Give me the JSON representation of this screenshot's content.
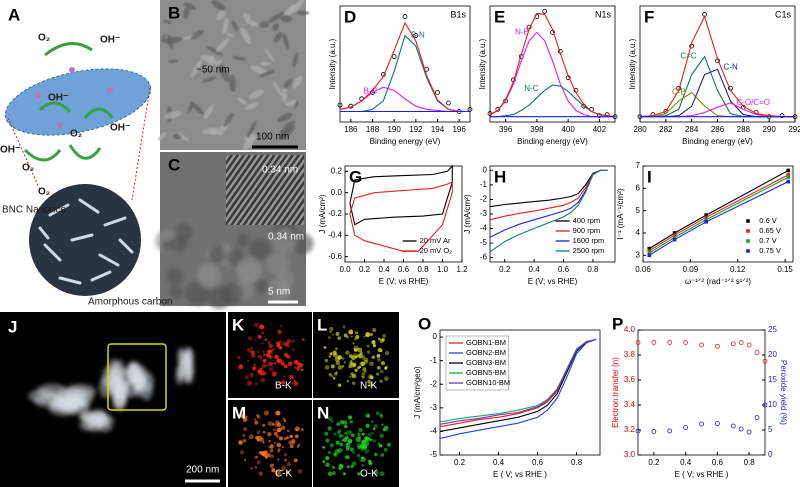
{
  "chart_data": [
    {
      "panel": "D",
      "type": "line",
      "title": "B1s",
      "x_label": "Binding energy (eV)",
      "y_label": "Intensity (a.u.)",
      "x": [
        185,
        186,
        187,
        188,
        189,
        190,
        191,
        192,
        193,
        194,
        195,
        196,
        197
      ],
      "xlim": [
        185,
        197
      ],
      "xticks": [
        186,
        188,
        190,
        192,
        194,
        196
      ],
      "ylim": [
        0,
        1.1
      ],
      "series": [
        {
          "color": "#000000",
          "mode": "markers",
          "values": [
            0.16,
            0.15,
            0.22,
            0.28,
            0.45,
            0.62,
            1.0,
            0.82,
            0.5,
            0.28,
            0.18,
            0.1,
            0.12
          ]
        },
        {
          "name": "B-C",
          "color": "#e020e0",
          "values": [
            0.12,
            0.14,
            0.2,
            0.28,
            0.33,
            0.3,
            0.22,
            0.15,
            0.12,
            0.11,
            0.1,
            0.1,
            0.1
          ]
        },
        {
          "name": "B-N",
          "color": "#107070",
          "values": [
            0.1,
            0.1,
            0.1,
            0.12,
            0.2,
            0.48,
            0.82,
            0.72,
            0.42,
            0.2,
            0.12,
            0.1,
            0.1
          ]
        },
        {
          "color": "#e02020",
          "values": [
            0.12,
            0.14,
            0.2,
            0.3,
            0.43,
            0.68,
            0.94,
            0.77,
            0.44,
            0.21,
            0.12,
            0.1,
            0.1
          ]
        },
        {
          "color": "#2020e0",
          "values": [
            0.1,
            0.1,
            0.1,
            0.1,
            0.1,
            0.1,
            0.1,
            0.1,
            0.1,
            0.1,
            0.1,
            0.1,
            0.1
          ]
        }
      ]
    },
    {
      "panel": "E",
      "type": "line",
      "title": "N1s",
      "x_label": "Binding energy (eV)",
      "y_label": "Intensity (a.u.)",
      "x": [
        395,
        395.5,
        396,
        396.5,
        397,
        397.5,
        398,
        398.5,
        399,
        399.5,
        400,
        400.5,
        401,
        401.5,
        402,
        402.5,
        403
      ],
      "xlim": [
        395,
        403
      ],
      "xticks": [
        396,
        398,
        400,
        402
      ],
      "ylim": [
        0,
        1.1
      ],
      "series": [
        {
          "color": "#000000",
          "mode": "markers",
          "values": [
            0.08,
            0.12,
            0.2,
            0.4,
            0.62,
            0.9,
            1.0,
            1.05,
            0.85,
            0.67,
            0.42,
            0.3,
            0.15,
            0.12,
            0.06,
            0.07,
            0.05
          ]
        },
        {
          "name": "N-B",
          "color": "#e020e0",
          "values": [
            0.07,
            0.11,
            0.2,
            0.36,
            0.58,
            0.77,
            0.85,
            0.77,
            0.58,
            0.36,
            0.2,
            0.11,
            0.07,
            0.05,
            0.05,
            0.05,
            0.05
          ]
        },
        {
          "name": "N-C",
          "color": "#107070",
          "values": [
            0.05,
            0.05,
            0.06,
            0.07,
            0.11,
            0.16,
            0.23,
            0.3,
            0.35,
            0.34,
            0.29,
            0.22,
            0.15,
            0.1,
            0.07,
            0.06,
            0.05
          ]
        },
        {
          "color": "#e02020",
          "values": [
            0.07,
            0.11,
            0.21,
            0.38,
            0.64,
            0.88,
            1.03,
            1.02,
            0.88,
            0.65,
            0.44,
            0.28,
            0.17,
            0.1,
            0.07,
            0.06,
            0.05
          ]
        },
        {
          "color": "#2020e0",
          "values": [
            0.05,
            0.05,
            0.05,
            0.05,
            0.05,
            0.05,
            0.05,
            0.05,
            0.05,
            0.05,
            0.05,
            0.05,
            0.05,
            0.05,
            0.05,
            0.05,
            0.05
          ]
        }
      ]
    },
    {
      "panel": "F",
      "type": "line",
      "title": "C1s",
      "x_label": "Binding energy (eV)",
      "y_label": "Intensity (a.u.)",
      "x": [
        280,
        281,
        282,
        283,
        284,
        285,
        286,
        287,
        288,
        289,
        290,
        291,
        292
      ],
      "xlim": [
        280,
        292
      ],
      "xticks": [
        280,
        282,
        284,
        286,
        288,
        290,
        292
      ],
      "ylim": [
        0,
        1.1
      ],
      "series": [
        {
          "color": "#000000",
          "mode": "markers",
          "values": [
            0.05,
            0.07,
            0.1,
            0.32,
            0.72,
            1.02,
            0.58,
            0.32,
            0.14,
            0.09,
            0.05,
            0.06,
            0.05
          ]
        },
        {
          "name": "C=C",
          "color": "#007a5a",
          "values": [
            0.05,
            0.05,
            0.06,
            0.12,
            0.45,
            0.62,
            0.3,
            0.08,
            0.05,
            0.05,
            0.05,
            0.05,
            0.05
          ]
        },
        {
          "name": "C-B",
          "color": "#8a8a00",
          "values": [
            0.05,
            0.05,
            0.08,
            0.2,
            0.28,
            0.15,
            0.06,
            0.05,
            0.05,
            0.05,
            0.05,
            0.05,
            0.05
          ]
        },
        {
          "name": "C-N",
          "color": "#202080",
          "values": [
            0.05,
            0.05,
            0.05,
            0.06,
            0.15,
            0.45,
            0.5,
            0.2,
            0.07,
            0.05,
            0.05,
            0.05,
            0.05
          ]
        },
        {
          "name": "C-O/C=O",
          "color": "#e020e0",
          "values": [
            0.05,
            0.05,
            0.05,
            0.05,
            0.06,
            0.09,
            0.14,
            0.18,
            0.12,
            0.07,
            0.05,
            0.05,
            0.05
          ]
        },
        {
          "color": "#e02020",
          "values": [
            0.05,
            0.06,
            0.1,
            0.3,
            0.75,
            1.0,
            0.6,
            0.3,
            0.15,
            0.08,
            0.06,
            0.05,
            0.05
          ]
        },
        {
          "color": "#2020e0",
          "values": [
            0.05,
            0.05,
            0.05,
            0.05,
            0.05,
            0.05,
            0.05,
            0.05,
            0.05,
            0.05,
            0.05,
            0.05,
            0.05
          ]
        }
      ]
    },
    {
      "panel": "G",
      "type": "line",
      "x_label": "E (V; vs RHE)",
      "y_label": "J (mA/cm²)",
      "xlim": [
        0,
        1.2
      ],
      "xticks": [
        {
          "value": 0,
          "label": "0.0"
        },
        0.2,
        0.4,
        0.6,
        0.8,
        {
          "value": 1,
          "label": "1.0"
        },
        1.2
      ],
      "ylim": [
        -0.65,
        0.25
      ],
      "yticks": [
        0.2,
        {
          "value": 0,
          "label": "0.0"
        },
        -0.2,
        -0.4,
        -0.6
      ],
      "legend": "bottom-right",
      "series": [
        {
          "name": "20 mV Ar",
          "color": "#000000",
          "x": [
            0.05,
            0.1,
            0.3,
            0.6,
            0.9,
            1.05,
            1.1,
            1.1,
            1.0,
            0.8,
            0.5,
            0.2,
            0.1,
            0.05
          ],
          "values": [
            -0.1,
            0.12,
            0.15,
            0.16,
            0.17,
            0.2,
            0.25,
            0.1,
            -0.2,
            -0.22,
            -0.23,
            -0.25,
            -0.3,
            -0.1
          ]
        },
        {
          "name": "20 mV O₂",
          "color": "#e02020",
          "x": [
            0.05,
            0.1,
            0.3,
            0.6,
            0.9,
            1.05,
            1.1,
            1.1,
            1.0,
            0.85,
            0.75,
            0.6,
            0.4,
            0.2,
            0.1,
            0.05
          ],
          "values": [
            -0.2,
            -0.05,
            0.0,
            0.02,
            0.04,
            0.08,
            0.1,
            0.0,
            -0.3,
            -0.45,
            -0.55,
            -0.55,
            -0.5,
            -0.45,
            -0.4,
            -0.2
          ]
        }
      ]
    },
    {
      "panel": "H",
      "type": "line",
      "x_label": "E (V; vs RHE)",
      "y_label": "J (mA/cm²)",
      "x": [
        0.1,
        0.2,
        0.3,
        0.4,
        0.5,
        0.6,
        0.65,
        0.7,
        0.75,
        0.8,
        0.85,
        0.9
      ],
      "xlim": [
        0.1,
        0.95
      ],
      "xticks": [
        0.2,
        0.4,
        0.6,
        0.8
      ],
      "ylim": [
        -6.3,
        0.3
      ],
      "yticks": [
        0,
        -1,
        -2,
        -3,
        -4,
        -5,
        -6
      ],
      "legend": "bottom-right",
      "series": [
        {
          "name": "400 rpm",
          "color": "#000000",
          "values": [
            -2.5,
            -2.35,
            -2.25,
            -2.15,
            -2.05,
            -1.9,
            -1.8,
            -1.6,
            -1.0,
            -0.2,
            0,
            0
          ]
        },
        {
          "name": "900 rpm",
          "color": "#e02020",
          "values": [
            -3.4,
            -3.15,
            -2.95,
            -2.8,
            -2.6,
            -2.4,
            -2.2,
            -1.9,
            -1.2,
            -0.25,
            0,
            0
          ]
        },
        {
          "name": "1600 rpm",
          "color": "#2020e0",
          "values": [
            -4.6,
            -4.1,
            -3.7,
            -3.4,
            -3.1,
            -2.8,
            -2.6,
            -2.2,
            -1.4,
            -0.3,
            0,
            0
          ]
        },
        {
          "name": "2500 rpm",
          "color": "#108080",
          "values": [
            -5.6,
            -4.9,
            -4.4,
            -4.0,
            -3.6,
            -3.2,
            -2.9,
            -2.4,
            -1.5,
            -0.3,
            0,
            0
          ]
        }
      ]
    },
    {
      "panel": "I",
      "type": "line",
      "x_label": "ω⁻¹ᐟ² (rad⁻¹ᐟ² s¹ᐟ²)",
      "y_label": "I⁻¹ (mA⁻¹/cm²)",
      "x": [
        0.064,
        0.08,
        0.1,
        0.152
      ],
      "xlim": [
        0.06,
        0.155
      ],
      "xticks": [
        0.06,
        0.09,
        0.12,
        0.15
      ],
      "ylim": [
        2.7,
        7
      ],
      "yticks": [
        3,
        4,
        5,
        6,
        7
      ],
      "legend": "bottom-right",
      "series": [
        {
          "name": "0.6 V",
          "color": "#000000",
          "mode": "both",
          "values": [
            3.3,
            4.0,
            4.8,
            6.8
          ]
        },
        {
          "name": "0.65 V",
          "color": "#e02020",
          "mode": "both",
          "values": [
            3.2,
            3.9,
            4.7,
            6.6
          ]
        },
        {
          "name": "0.7 V",
          "color": "#20a020",
          "mode": "both",
          "values": [
            3.1,
            3.8,
            4.6,
            6.5
          ]
        },
        {
          "name": "0.75 V",
          "color": "#2020e0",
          "mode": "both",
          "values": [
            3.0,
            3.7,
            4.5,
            6.3
          ]
        }
      ]
    },
    {
      "panel": "O",
      "type": "line",
      "x_label": "E ( V; vs RHE )",
      "y_label": "J (mA/cm²geo)",
      "x": [
        0.1,
        0.2,
        0.3,
        0.4,
        0.5,
        0.6,
        0.65,
        0.7,
        0.75,
        0.8,
        0.85,
        0.9
      ],
      "xlim": [
        0.1,
        0.92
      ],
      "xticks": [
        0.2,
        0.4,
        0.6,
        0.8
      ],
      "ylim": [
        -5,
        0.3
      ],
      "yticks": [
        0,
        -1,
        -2,
        -3,
        -4,
        -5
      ],
      "legend": "top-left",
      "series": [
        {
          "name": "GOBN1-BM",
          "color": "#e02020",
          "values": [
            -3.8,
            -3.65,
            -3.5,
            -3.4,
            -3.25,
            -3.0,
            -2.75,
            -2.3,
            -1.4,
            -0.55,
            -0.2,
            -0.1
          ]
        },
        {
          "name": "GOBN2-BM",
          "color": "#2040e0",
          "values": [
            -4.3,
            -4.1,
            -3.95,
            -3.8,
            -3.65,
            -3.4,
            -3.1,
            -2.6,
            -1.7,
            -0.7,
            -0.25,
            -0.1
          ]
        },
        {
          "name": "GOBN3-BM",
          "color": "#000000",
          "values": [
            -4.0,
            -3.85,
            -3.7,
            -3.55,
            -3.4,
            -3.15,
            -2.9,
            -2.4,
            -1.5,
            -0.6,
            -0.2,
            -0.1
          ]
        },
        {
          "name": "GOBN5-BM",
          "color": "#20a060",
          "values": [
            -3.6,
            -3.45,
            -3.35,
            -3.25,
            -3.1,
            -2.9,
            -2.65,
            -2.2,
            -1.35,
            -0.5,
            -0.2,
            -0.1
          ]
        },
        {
          "name": "GOBN10-BM",
          "color": "#8030c0",
          "values": [
            -3.7,
            -3.55,
            -3.45,
            -3.3,
            -3.2,
            -2.95,
            -2.7,
            -2.25,
            -1.4,
            -0.55,
            -0.2,
            -0.1
          ]
        }
      ]
    },
    {
      "panel": "P",
      "type": "line",
      "x_label": "E ( V; vs RHE )",
      "y_label": "Electron transfer (n)",
      "y2_label": "Peroxide yield (%)",
      "x": [
        0.1,
        0.2,
        0.3,
        0.4,
        0.5,
        0.6,
        0.7,
        0.75,
        0.8,
        0.85,
        0.9
      ],
      "xlim": [
        0.1,
        0.9
      ],
      "xticks": [
        0.2,
        0.4,
        0.6,
        0.8
      ],
      "ylim": [
        3,
        4
      ],
      "yticks": [
        {
          "value": 3,
          "label": "3.0"
        },
        3.2,
        3.4,
        3.6,
        3.8,
        {
          "value": 4,
          "label": "4.0"
        }
      ],
      "y2lim": [
        0,
        25
      ],
      "y2ticks": [
        0,
        5,
        10,
        15,
        20,
        25
      ],
      "y_color": "#e00000",
      "y2_color": "#2020e0",
      "series": [
        {
          "color": "#e02020",
          "mode": "markers",
          "values": [
            3.9,
            3.9,
            3.9,
            3.9,
            3.88,
            3.87,
            3.89,
            3.9,
            3.88,
            3.82,
            3.75
          ]
        },
        {
          "color": "#2020e0",
          "mode": "markers",
          "axis": "y2",
          "values": [
            4.8,
            4.7,
            4.8,
            5.5,
            6.2,
            6.3,
            5.8,
            5.2,
            4.6,
            7.5,
            10
          ]
        }
      ]
    }
  ],
  "image_panels": [
    {
      "letter": "A",
      "labels": [
        "O₂",
        "OH⁻",
        "OH⁻",
        "O₂",
        "OH⁻",
        "O₂",
        "OH⁻",
        "O₂",
        "BNC Nanorice",
        "Amorphous carbon"
      ]
    },
    {
      "letter": "B",
      "labels": [
        "~50 nm",
        "100 nm"
      ]
    },
    {
      "letter": "C",
      "labels": [
        "0.34 nm",
        "0.34 nm",
        "5 nm"
      ]
    },
    {
      "letter": "J",
      "labels": [
        "200 nm"
      ]
    },
    {
      "letter": "K",
      "labels": [
        "B-K"
      ]
    },
    {
      "letter": "L",
      "labels": [
        "N-K"
      ]
    },
    {
      "letter": "M",
      "labels": [
        "C-K"
      ]
    },
    {
      "letter": "N",
      "labels": [
        "O-K"
      ]
    }
  ]
}
